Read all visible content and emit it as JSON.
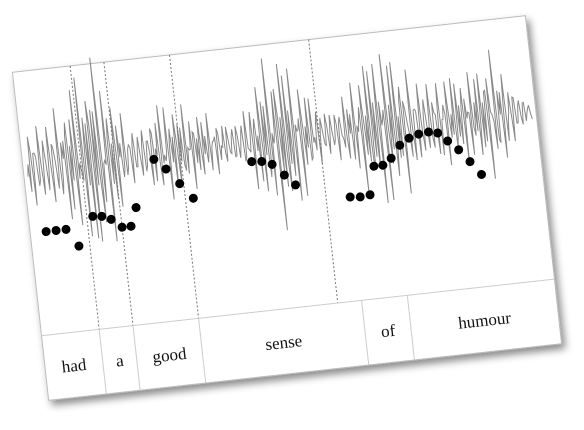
{
  "words": [
    "had",
    "a",
    "good",
    "sense",
    "of",
    "humour"
  ]
}
